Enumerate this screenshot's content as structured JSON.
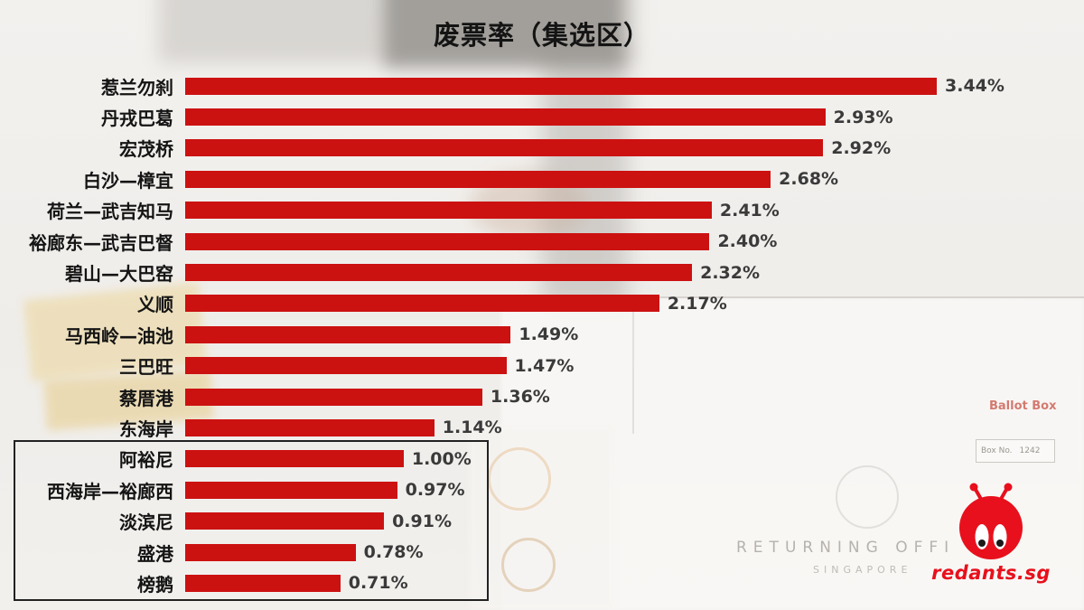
{
  "title": "废票率（集选区）",
  "chart_data": {
    "type": "bar",
    "orientation": "horizontal",
    "title": "废票率（集选区）",
    "categories": [
      "惹兰勿刹",
      "丹戎巴葛",
      "宏茂桥",
      "白沙—樟宜",
      "荷兰—武吉知马",
      "裕廊东—武吉巴督",
      "碧山—大巴窑",
      "义顺",
      "马西岭—油池",
      "三巴旺",
      "蔡厝港",
      "东海岸",
      "阿裕尼",
      "西海岸—裕廊西",
      "淡滨尼",
      "盛港",
      "榜鹅"
    ],
    "values": [
      3.44,
      2.93,
      2.92,
      2.68,
      2.41,
      2.4,
      2.32,
      2.17,
      1.49,
      1.47,
      1.36,
      1.14,
      1.0,
      0.97,
      0.91,
      0.78,
      0.71
    ],
    "value_labels": [
      "3.44%",
      "2.93%",
      "2.92%",
      "2.68%",
      "2.41%",
      "2.40%",
      "2.32%",
      "2.17%",
      "1.49%",
      "1.47%",
      "1.36%",
      "1.14%",
      "1.00%",
      "0.97%",
      "0.91%",
      "0.78%",
      "0.71%"
    ],
    "bar_color": "#cc1111",
    "xlim": [
      0,
      3.6
    ],
    "grid": false,
    "legend": false,
    "highlight_group": {
      "label": "boxed-bottom-group",
      "indices": [
        12,
        13,
        14,
        15,
        16
      ]
    }
  },
  "background": {
    "ballot_box_label": "Ballot Box",
    "box_no_label": "Box No.",
    "box_no_value": "1242",
    "returning_officer_text": "RETURNING OFFI",
    "singapore_text": "SINGAPORE"
  },
  "logo": {
    "brand": "redants.sg",
    "color": "#e8101c"
  }
}
